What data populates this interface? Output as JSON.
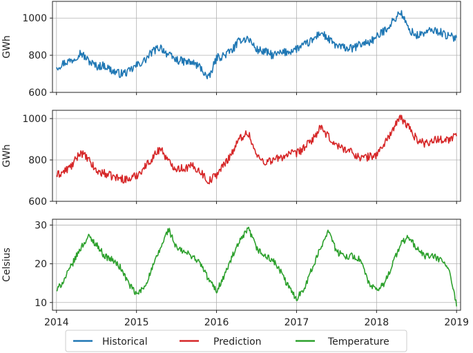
{
  "chart_data": [
    {
      "type": "line",
      "title": "",
      "xlabel": "",
      "ylabel": "GWh",
      "xlim": [
        2013.95,
        2019.05
      ],
      "ylim": [
        600,
        1090
      ],
      "yticks": [
        600,
        800,
        1000
      ],
      "grid": true,
      "series": [
        {
          "color": "#1f77b4",
          "x": [
            2014.0,
            2014.1,
            2014.2,
            2014.3,
            2014.4,
            2014.5,
            2014.6,
            2014.7,
            2014.8,
            2014.9,
            2015.0,
            2015.1,
            2015.2,
            2015.3,
            2015.4,
            2015.5,
            2015.6,
            2015.7,
            2015.8,
            2015.9,
            2016.0,
            2016.1,
            2016.2,
            2016.3,
            2016.4,
            2016.5,
            2016.6,
            2016.7,
            2016.8,
            2016.9,
            2017.0,
            2017.1,
            2017.2,
            2017.3,
            2017.4,
            2017.5,
            2017.6,
            2017.7,
            2017.8,
            2017.9,
            2018.0,
            2018.1,
            2018.2,
            2018.3,
            2018.4,
            2018.5,
            2018.6,
            2018.7,
            2018.8,
            2018.9,
            2019.0
          ],
          "values": [
            735,
            760,
            775,
            815,
            770,
            740,
            745,
            715,
            700,
            710,
            745,
            770,
            820,
            845,
            800,
            775,
            765,
            760,
            735,
            670,
            785,
            800,
            830,
            885,
            890,
            830,
            820,
            800,
            810,
            820,
            835,
            855,
            880,
            925,
            885,
            850,
            840,
            835,
            860,
            870,
            895,
            935,
            980,
            1035,
            940,
            905,
            920,
            935,
            925,
            900,
            895
          ]
        }
      ]
    },
    {
      "type": "line",
      "title": "",
      "xlabel": "",
      "ylabel": "GWh",
      "xlim": [
        2013.95,
        2019.05
      ],
      "ylim": [
        600,
        1040
      ],
      "yticks": [
        600,
        800,
        1000
      ],
      "grid": true,
      "series": [
        {
          "color": "#d62728",
          "x": [
            2014.0,
            2014.1,
            2014.2,
            2014.3,
            2014.4,
            2014.5,
            2014.6,
            2014.7,
            2014.8,
            2014.9,
            2015.0,
            2015.1,
            2015.2,
            2015.3,
            2015.4,
            2015.5,
            2015.6,
            2015.7,
            2015.8,
            2015.9,
            2016.0,
            2016.1,
            2016.2,
            2016.3,
            2016.4,
            2016.5,
            2016.6,
            2016.7,
            2016.8,
            2016.9,
            2017.0,
            2017.1,
            2017.2,
            2017.3,
            2017.4,
            2017.5,
            2017.6,
            2017.7,
            2017.8,
            2017.9,
            2018.0,
            2018.1,
            2018.2,
            2018.3,
            2018.4,
            2018.5,
            2018.6,
            2018.7,
            2018.8,
            2018.9,
            2019.0
          ],
          "values": [
            725,
            745,
            775,
            840,
            800,
            745,
            735,
            720,
            710,
            705,
            725,
            765,
            810,
            860,
            790,
            760,
            760,
            770,
            745,
            695,
            730,
            780,
            840,
            910,
            930,
            820,
            790,
            800,
            810,
            830,
            830,
            860,
            900,
            955,
            910,
            870,
            855,
            835,
            810,
            815,
            825,
            880,
            945,
            1005,
            960,
            900,
            880,
            895,
            900,
            900,
            915
          ]
        }
      ]
    },
    {
      "type": "line",
      "title": "",
      "xlabel": "",
      "ylabel": "Celsius",
      "xlim": [
        2013.95,
        2019.05
      ],
      "ylim": [
        8,
        31.5
      ],
      "yticks": [
        10,
        20,
        30
      ],
      "xticks": [
        2014,
        2015,
        2016,
        2017,
        2018,
        2019
      ],
      "grid": true,
      "series": [
        {
          "color": "#2ca02c",
          "x": [
            2014.0,
            2014.1,
            2014.2,
            2014.3,
            2014.4,
            2014.5,
            2014.6,
            2014.7,
            2014.8,
            2014.9,
            2015.0,
            2015.1,
            2015.2,
            2015.3,
            2015.4,
            2015.5,
            2015.6,
            2015.7,
            2015.8,
            2015.9,
            2016.0,
            2016.1,
            2016.2,
            2016.3,
            2016.4,
            2016.5,
            2016.6,
            2016.7,
            2016.8,
            2016.9,
            2017.0,
            2017.1,
            2017.2,
            2017.3,
            2017.4,
            2017.5,
            2017.6,
            2017.7,
            2017.8,
            2017.9,
            2018.0,
            2018.1,
            2018.2,
            2018.3,
            2018.4,
            2018.5,
            2018.6,
            2018.7,
            2018.8,
            2018.9,
            2019.0
          ],
          "values": [
            13,
            16,
            20,
            24,
            27,
            25,
            22,
            21,
            19,
            15,
            12,
            14,
            19,
            24,
            29,
            24,
            23,
            22,
            20,
            16,
            13,
            17,
            22,
            26,
            29,
            24,
            22,
            21,
            18,
            14,
            11,
            14,
            19,
            24,
            29,
            23,
            22,
            22,
            21,
            15,
            13,
            15,
            20,
            25,
            27,
            24,
            22,
            22,
            21,
            19,
            9
          ]
        }
      ]
    }
  ],
  "xaxis": {
    "ticks": [
      "2014",
      "2015",
      "2016",
      "2017",
      "2018",
      "2019"
    ]
  },
  "legend": {
    "placement": "bottom",
    "entries": [
      {
        "label": "Historical",
        "color": "#1f77b4"
      },
      {
        "label": "Prediction",
        "color": "#d62728"
      },
      {
        "label": "Temperature",
        "color": "#2ca02c"
      }
    ]
  }
}
